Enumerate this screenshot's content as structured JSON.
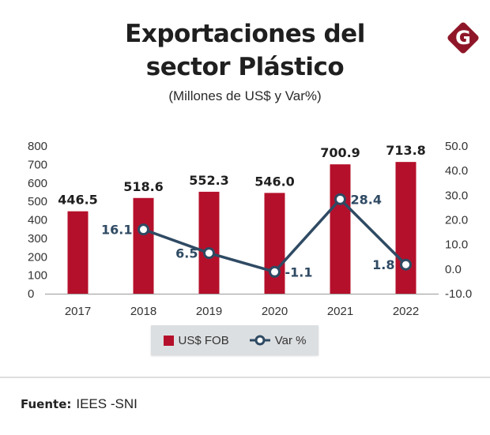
{
  "header": {
    "title_line1": "Exportaciones del",
    "title_line2": "sector Plástico",
    "subtitle": "(Millones de US$ y Var%)",
    "logo_letter": "G",
    "logo_icon": "brand-g-diamond-icon"
  },
  "colors": {
    "bar": "#b5102b",
    "line": "#2f4a63",
    "label_bar": "#1f1f1f",
    "label_line": "#2f4a63",
    "legend_bg": "#dcdfe1",
    "logo": "#8e1628"
  },
  "legend": {
    "bar_label": "US$ FOB",
    "line_label": "Var %"
  },
  "footer": {
    "source_label": "Fuente:",
    "source_value": "IEES -SNI"
  },
  "chart_data": {
    "type": "bar",
    "title": "Exportaciones del sector Plástico",
    "subtitle": "(Millones de US$ y Var%)",
    "categories": [
      "2017",
      "2018",
      "2019",
      "2020",
      "2021",
      "2022"
    ],
    "series": [
      {
        "name": "US$ FOB",
        "type": "bar",
        "axis": "left",
        "values": [
          446.5,
          518.6,
          552.3,
          546.0,
          700.9,
          713.8
        ],
        "labels": [
          "446.5",
          "518.6",
          "552.3",
          "546.0",
          "700.9",
          "713.8"
        ]
      },
      {
        "name": "Var %",
        "type": "line",
        "axis": "right",
        "values": [
          null,
          16.1,
          6.5,
          -1.1,
          28.4,
          1.8
        ],
        "labels": [
          "",
          "16.1",
          "6.5",
          "-1.1",
          "28.4",
          "1.8"
        ]
      }
    ],
    "y_left": {
      "range": [
        0,
        800
      ],
      "ticks": [
        0,
        100,
        200,
        300,
        400,
        500,
        600,
        700,
        800
      ],
      "tick_labels": [
        "0",
        "100",
        "200",
        "300",
        "400",
        "500",
        "600",
        "700",
        "800"
      ]
    },
    "y_right": {
      "range": [
        -10,
        50
      ],
      "ticks": [
        -10,
        0,
        10,
        20,
        30,
        40,
        50
      ],
      "tick_labels": [
        "-10.0",
        "0.0",
        "10.0",
        "20.0",
        "30.0",
        "40.0",
        "50.0"
      ]
    },
    "xlabel": "",
    "ylabel": "",
    "grid": false,
    "legend_position": "bottom-center"
  }
}
